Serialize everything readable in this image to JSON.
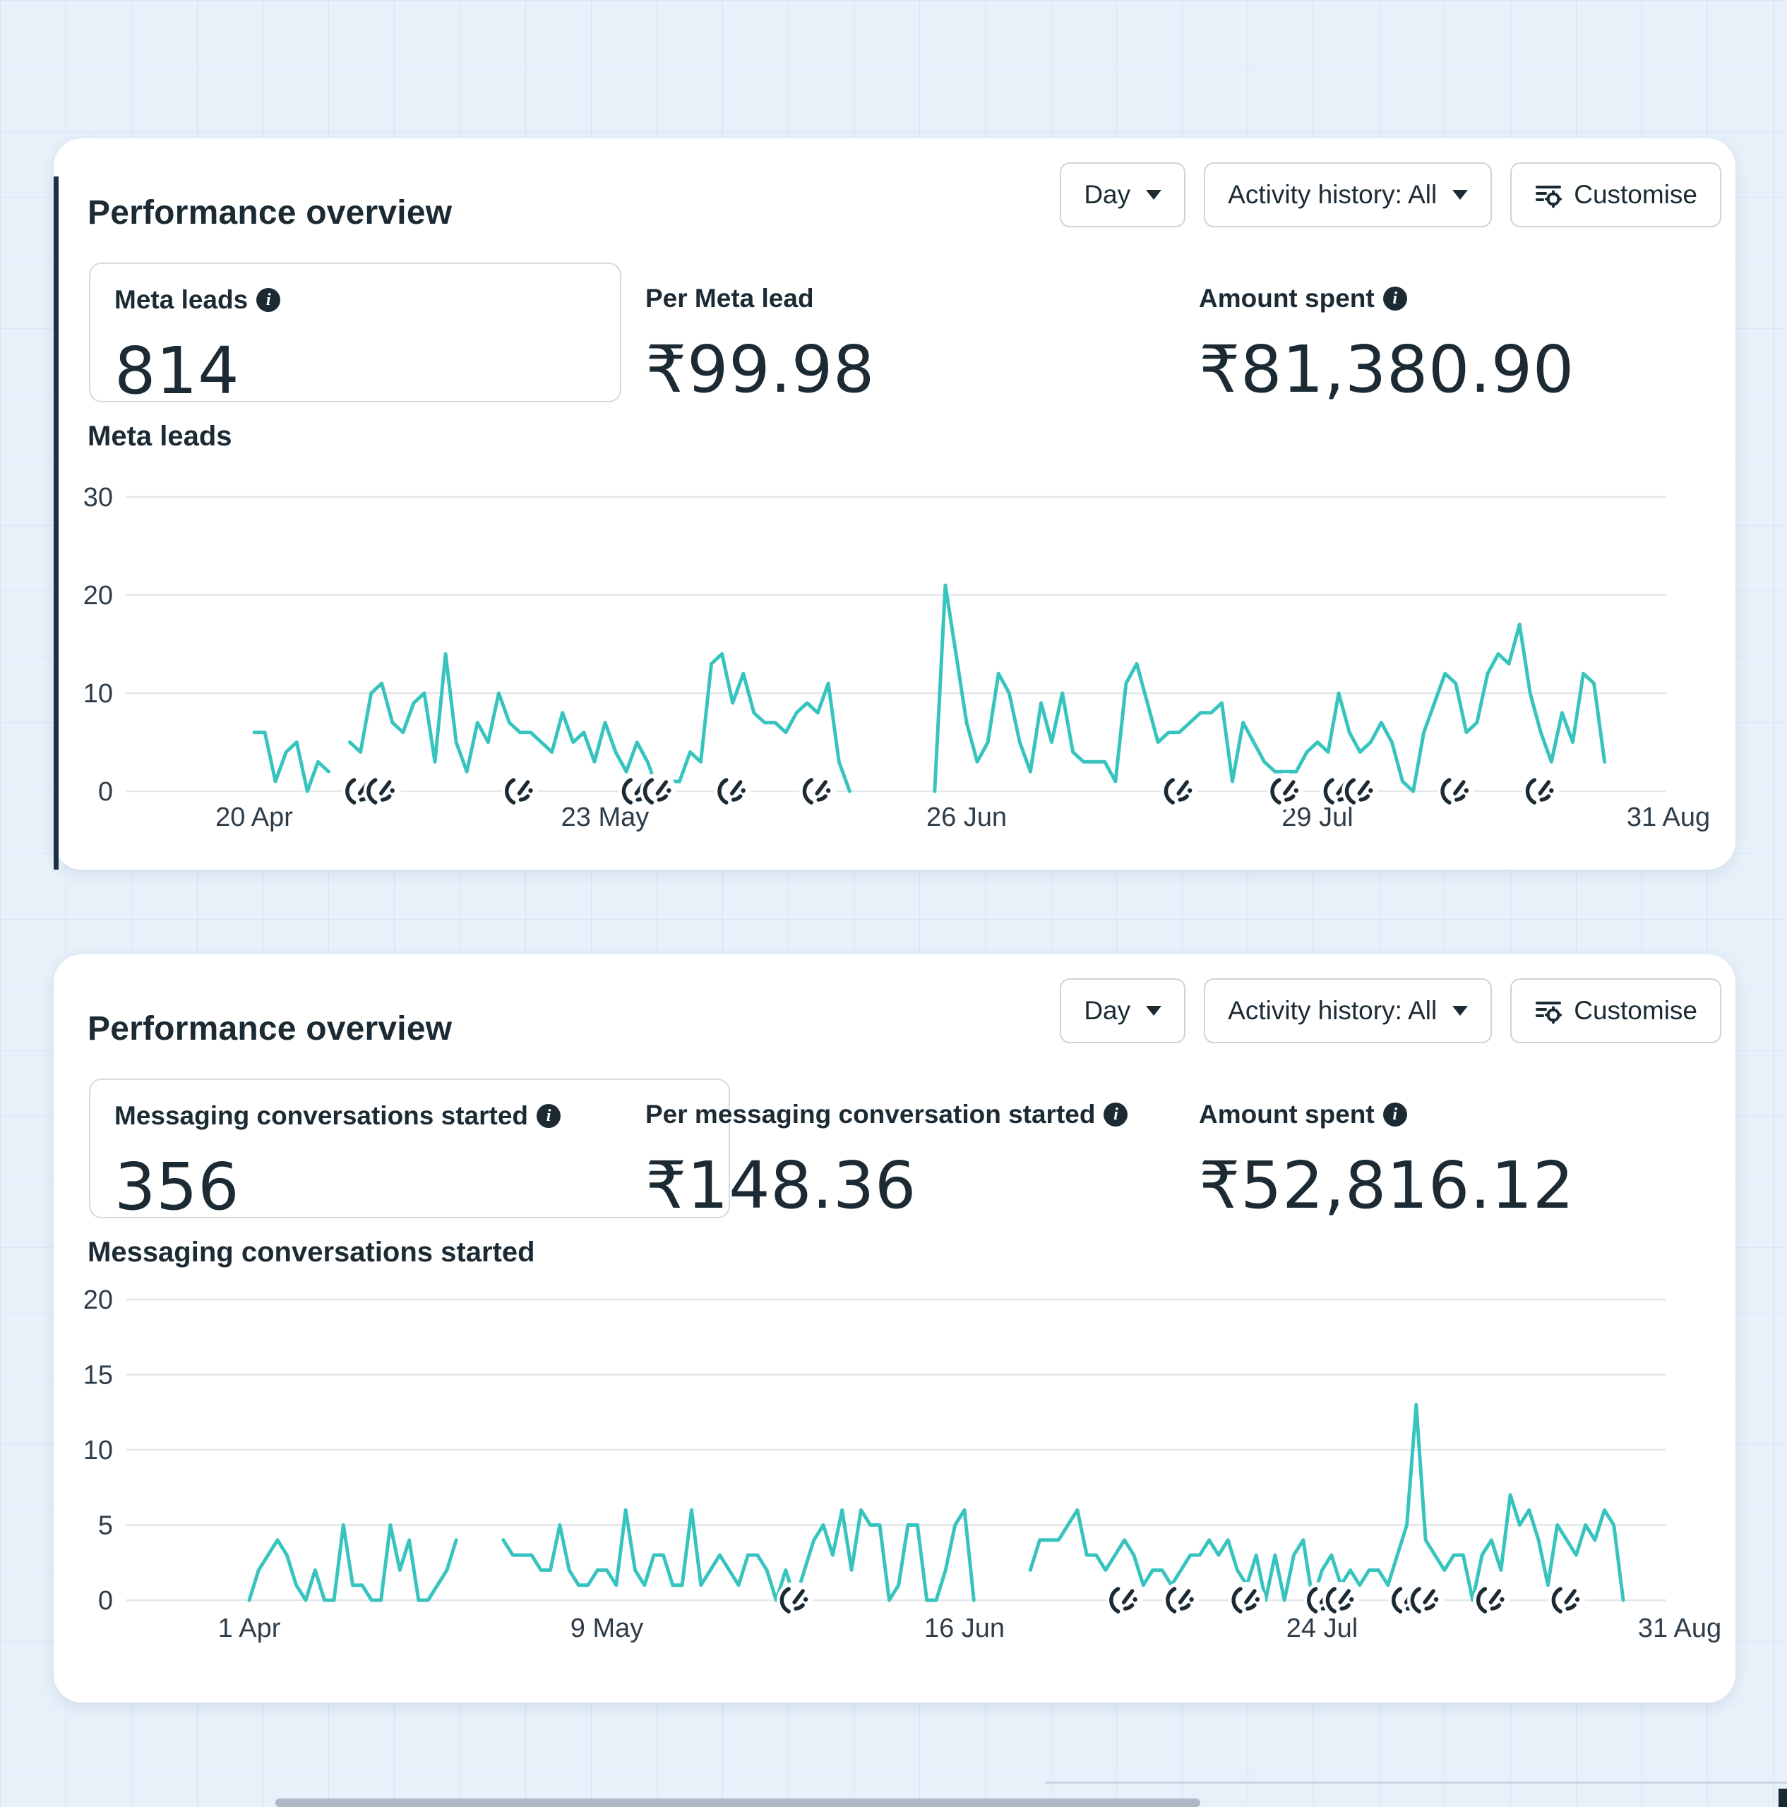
{
  "cards": [
    {
      "title": "Performance overview",
      "controls": {
        "day_label": "Day",
        "activity_label": "Activity history: All",
        "customise_label": "Customise"
      },
      "metrics": [
        {
          "label": "Meta leads",
          "has_info": true,
          "value": "814",
          "boxed": true
        },
        {
          "label": "Per Meta lead",
          "has_info": false,
          "value": "₹99.98",
          "boxed": false
        },
        {
          "label": "Amount spent",
          "has_info": true,
          "value": "₹81,380.90",
          "boxed": false
        }
      ],
      "chart_label": "Meta leads"
    },
    {
      "title": "Performance overview",
      "controls": {
        "day_label": "Day",
        "activity_label": "Activity history: All",
        "customise_label": "Customise"
      },
      "metrics": [
        {
          "label": "Messaging conversations started",
          "has_info": true,
          "value": "356",
          "boxed": true
        },
        {
          "label": "Per messaging conversation started",
          "has_info": true,
          "value": "₹148.36",
          "boxed": false
        },
        {
          "label": "Amount spent",
          "has_info": true,
          "value": "₹52,816.12",
          "boxed": false
        }
      ],
      "chart_label": "Messaging conversations started"
    }
  ],
  "chart_data": [
    {
      "type": "line",
      "title": "Meta leads",
      "line_color": "#38c4be",
      "grid_color": "#e4e7ea",
      "axis_text_color": "#2e3d49",
      "ylim": [
        0,
        30
      ],
      "yticks": [
        0,
        10,
        20,
        30
      ],
      "days_total": 133,
      "x_tick_labels": [
        {
          "label": "20 Apr",
          "day": 0
        },
        {
          "label": "23 May",
          "day": 33
        },
        {
          "label": "26 Jun",
          "day": 67
        },
        {
          "label": "29 Jul",
          "day": 100
        },
        {
          "label": "31 Aug",
          "day": 133
        }
      ],
      "values": [
        6,
        6,
        1,
        4,
        5,
        0,
        3,
        2,
        null,
        5,
        4,
        10,
        11,
        7,
        6,
        9,
        10,
        3,
        14,
        5,
        2,
        7,
        5,
        10,
        7,
        6,
        6,
        5,
        4,
        8,
        5,
        6,
        3,
        7,
        4,
        2,
        5,
        3,
        0,
        1,
        1,
        4,
        3,
        13,
        14,
        9,
        12,
        8,
        7,
        7,
        6,
        8,
        9,
        8,
        11,
        3,
        0,
        null,
        null,
        null,
        null,
        null,
        null,
        null,
        0,
        21,
        14,
        7,
        3,
        5,
        12,
        10,
        5,
        2,
        9,
        5,
        10,
        4,
        3,
        3,
        3,
        1,
        11,
        13,
        9,
        5,
        6,
        6,
        7,
        8,
        8,
        9,
        1,
        7,
        5,
        3,
        2,
        2,
        2,
        4,
        5,
        4,
        10,
        6,
        4,
        5,
        7,
        5,
        1,
        0,
        6,
        9,
        12,
        11,
        6,
        7,
        12,
        14,
        13,
        17,
        10,
        6,
        3,
        8,
        5,
        12,
        11,
        3,
        null,
        null,
        null,
        null,
        null,
        null
      ],
      "activity_marker_days": [
        10,
        12,
        25,
        36,
        38,
        45,
        53,
        87,
        97,
        102,
        104,
        113,
        121
      ]
    },
    {
      "type": "line",
      "title": "Messaging conversations started",
      "line_color": "#38c4be",
      "grid_color": "#e4e7ea",
      "axis_text_color": "#2e3d49",
      "ylim": [
        0,
        20
      ],
      "yticks": [
        0,
        5,
        10,
        15,
        20
      ],
      "days_total": 152,
      "x_tick_labels": [
        {
          "label": "1 Apr",
          "day": 0
        },
        {
          "label": "9 May",
          "day": 38
        },
        {
          "label": "16 Jun",
          "day": 76
        },
        {
          "label": "24 Jul",
          "day": 114
        },
        {
          "label": "31 Aug",
          "day": 152
        }
      ],
      "values": [
        0,
        2,
        3,
        4,
        3,
        1,
        0,
        2,
        0,
        0,
        5,
        1,
        1,
        0,
        0,
        5,
        2,
        4,
        0,
        0,
        1,
        2,
        4,
        null,
        null,
        null,
        null,
        4,
        3,
        3,
        3,
        2,
        2,
        5,
        2,
        1,
        1,
        2,
        2,
        1,
        6,
        2,
        1,
        3,
        3,
        1,
        1,
        6,
        1,
        2,
        3,
        2,
        1,
        3,
        3,
        2,
        0,
        2,
        0,
        2,
        4,
        5,
        3,
        6,
        2,
        6,
        5,
        5,
        0,
        1,
        5,
        5,
        0,
        0,
        2,
        5,
        6,
        0,
        null,
        null,
        null,
        null,
        null,
        2,
        4,
        4,
        4,
        5,
        6,
        3,
        3,
        2,
        3,
        4,
        3,
        1,
        2,
        2,
        1,
        2,
        3,
        3,
        4,
        3,
        4,
        2,
        1,
        3,
        0,
        3,
        0,
        3,
        4,
        0,
        2,
        3,
        1,
        2,
        1,
        2,
        2,
        1,
        3,
        5,
        13,
        4,
        3,
        2,
        3,
        3,
        0,
        3,
        4,
        2,
        7,
        5,
        6,
        4,
        1,
        5,
        4,
        3,
        5,
        4,
        6,
        5,
        0,
        null,
        null,
        null,
        null,
        null,
        null
      ],
      "activity_marker_days": [
        58,
        93,
        99,
        106,
        114,
        116,
        123,
        125,
        132,
        140
      ]
    }
  ]
}
